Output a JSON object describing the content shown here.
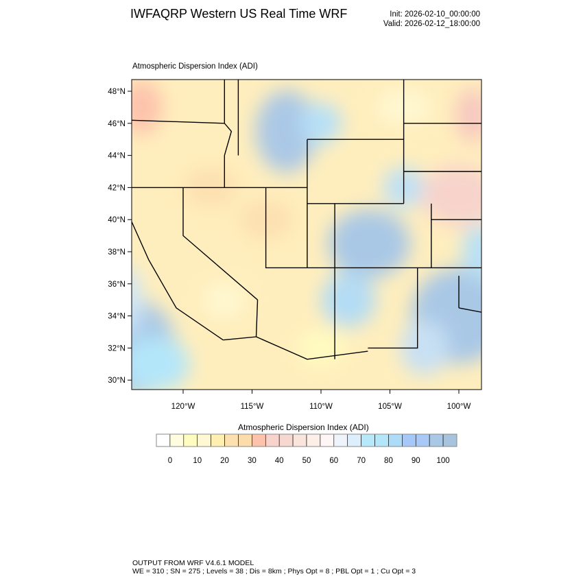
{
  "header": {
    "title": "IWFAQRP Western US Real Time WRF",
    "init": "Init: 2026-02-10_00:00:00",
    "valid": "Valid: 2026-02-12_18:00:00"
  },
  "map": {
    "subtitle": "Atmospheric Dispersion Index   (ADI)",
    "lat_ticks": [
      "30°N",
      "32°N",
      "34°N",
      "36°N",
      "38°N",
      "40°N",
      "42°N",
      "44°N",
      "46°N",
      "48°N"
    ],
    "lat_values": [
      30,
      32,
      34,
      36,
      38,
      40,
      42,
      44,
      46,
      48
    ],
    "lon_ticks": [
      "120°W",
      "115°W",
      "110°W",
      "105°W",
      "100°W"
    ],
    "lon_values": [
      -120,
      -115,
      -110,
      -105,
      -100
    ]
  },
  "colorbar": {
    "title": "Atmospheric Dispersion Index  (ADI)",
    "labels": [
      "0",
      "10",
      "20",
      "30",
      "40",
      "50",
      "60",
      "70",
      "80",
      "90",
      "100"
    ],
    "colors": [
      "#ffffff",
      "#fffde0",
      "#fffcc0",
      "#fff8d2",
      "#ffefb0",
      "#fde0b0",
      "#fddcac",
      "#fdc2ac",
      "#f7d3cc",
      "#f7d8d0",
      "#fae5dc",
      "#fdeee8",
      "#fef6f6",
      "#eef3fc",
      "#ddeefc",
      "#b6e8fa",
      "#b4e6fa",
      "#acdcf8",
      "#a6c8f8",
      "#a8c8f6",
      "#a9c8e6",
      "#a8c4dc"
    ]
  },
  "footer": {
    "line1": "OUTPUT FROM WRF V4.6.1 MODEL",
    "line2": "WE = 310 ; SN = 275 ; Levels = 38 ; Dis = 8km ; Phys Opt = 8 ; PBL Opt = 1 ; Cu Opt = 3"
  }
}
